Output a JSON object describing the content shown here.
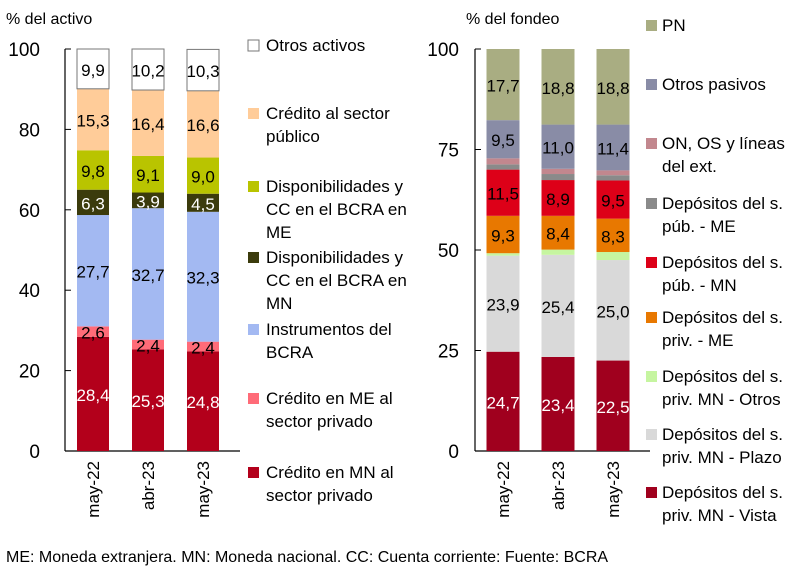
{
  "chart_data": [
    {
      "type": "bar",
      "stacked": true,
      "ylabel": "% del activo",
      "ylim": [
        0,
        100
      ],
      "yticks": [
        0,
        20,
        40,
        60,
        80,
        100
      ],
      "categories": [
        "may-22",
        "abr-23",
        "may-23"
      ],
      "series": [
        {
          "name": "Crédito en MN al sector privado",
          "values": [
            28.4,
            25.3,
            24.8
          ],
          "labels": [
            "28,4",
            "25,3",
            "24,8"
          ],
          "color": "#b3001b",
          "label_color": "#ffffff"
        },
        {
          "name": "Crédito en ME al sector privado",
          "values": [
            2.6,
            2.4,
            2.4
          ],
          "labels": [
            "2,6",
            "2,4",
            "2,4"
          ],
          "color": "#ff6b78",
          "label_color": "#000000"
        },
        {
          "name": "Instrumentos del BCRA",
          "values": [
            27.7,
            32.7,
            32.3
          ],
          "labels": [
            "27,7",
            "32,7",
            "32,3"
          ],
          "color": "#a3b9f2",
          "label_color": "#000000"
        },
        {
          "name": "Disponibilidades y CC en el BCRA en MN",
          "values": [
            6.3,
            3.9,
            4.5
          ],
          "labels": [
            "6,3",
            "3,9",
            "4,5"
          ],
          "color": "#3b3b0c",
          "label_color": "#ffffff"
        },
        {
          "name": "Disponibilidades y CC en el BCRA en ME",
          "values": [
            9.8,
            9.1,
            9.0
          ],
          "labels": [
            "9,8",
            "9,1",
            "9,0"
          ],
          "color": "#b9c400",
          "label_color": "#000000"
        },
        {
          "name": "Crédito al sector público",
          "values": [
            15.3,
            16.4,
            16.6
          ],
          "labels": [
            "15,3",
            "16,4",
            "16,6"
          ],
          "color": "#ffcc99",
          "label_color": "#000000"
        },
        {
          "name": "Otros activos",
          "values": [
            9.9,
            10.2,
            10.3
          ],
          "labels": [
            "9,9",
            "10,2",
            "10,3"
          ],
          "color": "#ffffff",
          "label_color": "#000000"
        }
      ],
      "legend": [
        "Otros activos",
        "Crédito al sector público",
        "Disponibilidades y CC en el BCRA en ME",
        "Disponibilidades y CC en el BCRA en MN",
        "Instrumentos del BCRA",
        "Crédito en ME al sector privado",
        "Crédito en MN al sector privado"
      ],
      "legend_placement": "right"
    },
    {
      "type": "bar",
      "stacked": true,
      "ylabel": "% del fondeo",
      "ylim": [
        0,
        100
      ],
      "yticks": [
        0,
        25,
        50,
        75,
        100
      ],
      "categories": [
        "may-22",
        "abr-23",
        "may-23"
      ],
      "series": [
        {
          "name": "Depósitos del s. priv. MN - Vista",
          "values": [
            24.7,
            23.4,
            22.5
          ],
          "labels": [
            "24,7",
            "23,4",
            "22,5"
          ],
          "color": "#a0001e",
          "label_color": "#ffffff"
        },
        {
          "name": "Depósitos del s. priv. MN - Plazo",
          "values": [
            23.9,
            25.4,
            25.0
          ],
          "labels": [
            "23,9",
            "25,4",
            "25,0"
          ],
          "color": "#d9d9d9",
          "label_color": "#000000"
        },
        {
          "name": "Depósitos del s. priv. MN - Otros",
          "values": [
            0.6,
            1.3,
            2.0
          ],
          "labels": [
            "",
            "",
            ""
          ],
          "color": "#c6f5a0",
          "label_color": "#000000"
        },
        {
          "name": "Depósitos del s. priv. - ME",
          "values": [
            9.3,
            8.4,
            8.3
          ],
          "labels": [
            "9,3",
            "8,4",
            "8,3"
          ],
          "color": "#e87800",
          "label_color": "#000000"
        },
        {
          "name": "Depósitos del s. púb. - MN",
          "values": [
            11.5,
            8.9,
            9.5
          ],
          "labels": [
            "11,5",
            "8,9",
            "9,5"
          ],
          "color": "#dd0018",
          "label_color": "#000000"
        },
        {
          "name": "Depósitos del s. púb. - ME",
          "values": [
            1.3,
            1.5,
            1.3
          ],
          "labels": [
            "",
            "",
            ""
          ],
          "color": "#8a8a8a",
          "label_color": "#000000"
        },
        {
          "name": "ON, OS y líneas del ext.",
          "values": [
            1.5,
            1.3,
            1.2
          ],
          "labels": [
            "",
            "",
            ""
          ],
          "color": "#c2878e",
          "label_color": "#000000"
        },
        {
          "name": "Otros pasivos",
          "values": [
            9.5,
            11.0,
            11.4
          ],
          "labels": [
            "9,5",
            "11,0",
            "11,4"
          ],
          "color": "#898ca6",
          "label_color": "#000000"
        },
        {
          "name": "PN",
          "values": [
            17.7,
            18.8,
            18.8
          ],
          "labels": [
            "17,7",
            "18,8",
            "18,8"
          ],
          "color": "#a9ad82",
          "label_color": "#000000"
        }
      ],
      "legend": [
        "PN",
        "Otros pasivos",
        "ON, OS y líneas del ext.",
        "Depósitos del s. púb. - ME",
        "Depósitos del s. púb. - MN",
        "Depósitos del s. priv. - ME",
        "Depósitos del s. priv. MN - Otros",
        "Depósitos del s. priv. MN - Plazo",
        "Depósitos del s. priv. MN - Vista"
      ],
      "legend_placement": "right"
    }
  ],
  "footnote": "ME: Moneda extranjera. MN: Moneda nacional. CC: Cuenta corriente: Fuente: BCRA"
}
